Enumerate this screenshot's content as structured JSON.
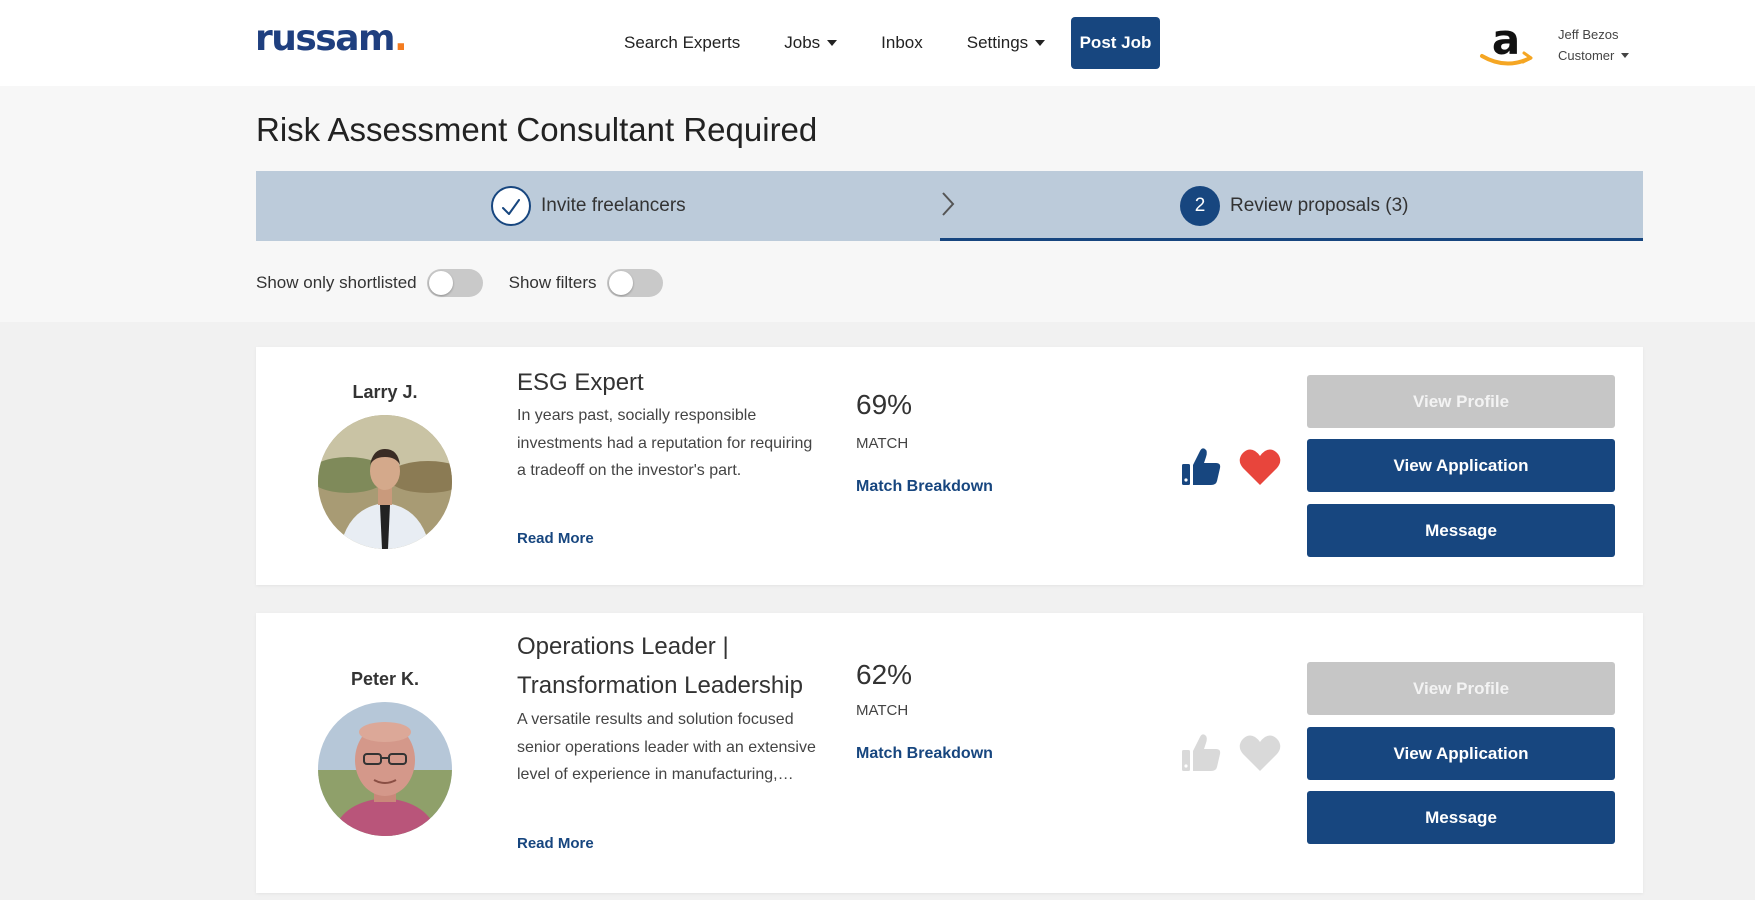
{
  "header": {
    "logo_text": "russam",
    "logo_dot": ".",
    "nav": {
      "search_experts": "Search Experts",
      "jobs": "Jobs",
      "inbox": "Inbox",
      "settings": "Settings"
    },
    "post_job": "Post Job",
    "company_logo_icon": "amazon-logo-icon",
    "user": {
      "name": "Jeff Bezos",
      "role": "Customer"
    }
  },
  "page": {
    "title": "Risk Assessment Consultant Required"
  },
  "steps": {
    "step1": {
      "label": "Invite freelancers",
      "state": "completed"
    },
    "step2": {
      "number": "2",
      "label": "Review proposals (3)",
      "state": "active"
    }
  },
  "toggles": {
    "shortlisted": {
      "label": "Show only shortlisted",
      "on": false
    },
    "filters": {
      "label": "Show filters",
      "on": false
    }
  },
  "colors": {
    "brand": "#17467f",
    "accent": "#f47c20",
    "heart_active": "#e8453c",
    "inactive": "#d9d9d9"
  },
  "candidates": [
    {
      "name": "Larry J.",
      "title": "ESG Expert",
      "description": "In years past, socially responsible investments had a reputation for requiring a tradeoff on the investor's part.",
      "read_more": "Read More",
      "match_percent": "69%",
      "match_label": "MATCH",
      "match_breakdown": "Match Breakdown",
      "liked": true,
      "shortlisted": true,
      "buttons": {
        "view_profile": "View Profile",
        "view_application": "View Application",
        "message": "Message"
      }
    },
    {
      "name": "Peter K.",
      "title": "Operations Leader | Transformation Leadership",
      "description": "A versatile results and solution focused senior operations leader with an extensive level of experience in manufacturing,…",
      "read_more": "Read More",
      "match_percent": "62%",
      "match_label": "MATCH",
      "match_breakdown": "Match Breakdown",
      "liked": false,
      "shortlisted": false,
      "buttons": {
        "view_profile": "View Profile",
        "view_application": "View Application",
        "message": "Message"
      }
    }
  ]
}
